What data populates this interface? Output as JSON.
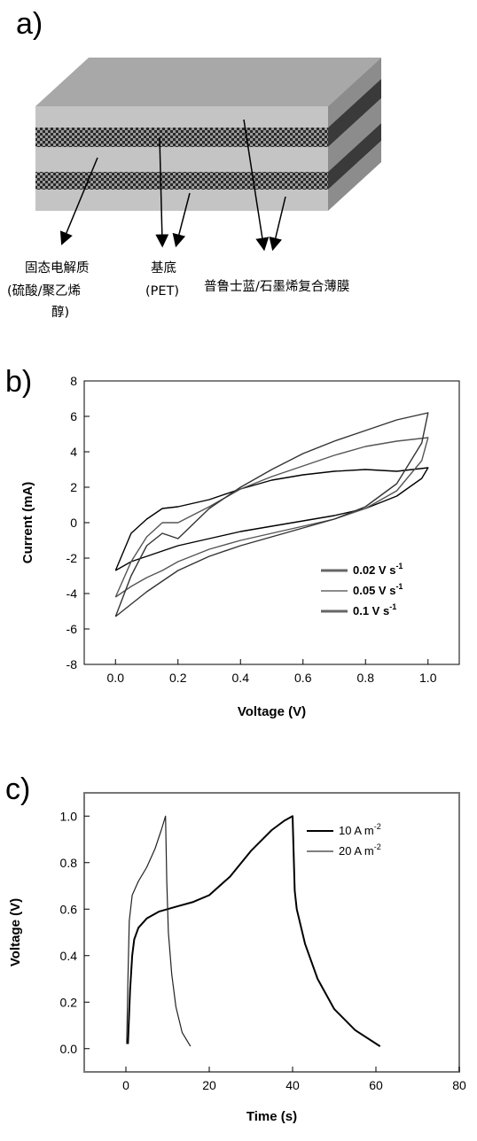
{
  "panels": {
    "a": {
      "label": "a)"
    },
    "b": {
      "label": "b)"
    },
    "c": {
      "label": "c)"
    }
  },
  "diagram": {
    "labels": {
      "electrolyte_line1": "固态电解质",
      "electrolyte_line2": "(硫酸/聚乙烯",
      "electrolyte_line3": "醇)",
      "substrate_line1": "基底",
      "substrate_line2": "(PET)",
      "film": "普鲁士蓝/石墨烯复合薄膜"
    },
    "colors": {
      "layer_face": "#c0c0c0",
      "layer_top": "#a8a8a8",
      "layer_side": "#8a8a8a",
      "electrolyte": "#2a2a2a"
    }
  },
  "chart_data": [
    {
      "type": "line",
      "ylabel": "Current (mA)",
      "xlabel": "Voltage (V)",
      "xlim": [
        -0.1,
        1.1
      ],
      "ylim": [
        -8,
        8
      ],
      "xticks": [
        "0.0",
        "0.2",
        "0.4",
        "0.6",
        "0.8",
        "1.0"
      ],
      "yticks": [
        "-8",
        "-6",
        "-4",
        "-2",
        "0",
        "2",
        "4",
        "6",
        "8"
      ],
      "legend_position": "bottom-right",
      "series": [
        {
          "name": "0.02 V s",
          "name_sup": "-1",
          "x": [
            0.0,
            0.05,
            0.1,
            0.15,
            0.2,
            0.3,
            0.4,
            0.5,
            0.6,
            0.7,
            0.8,
            0.9,
            1.0,
            0.98,
            0.9,
            0.8,
            0.7,
            0.6,
            0.5,
            0.4,
            0.3,
            0.2,
            0.15,
            0.1,
            0.05,
            0.0
          ],
          "y": [
            -2.7,
            -0.6,
            0.2,
            0.8,
            0.9,
            1.3,
            1.9,
            2.4,
            2.7,
            2.9,
            3.0,
            2.9,
            3.1,
            2.5,
            1.5,
            0.8,
            0.4,
            0.1,
            -0.2,
            -0.5,
            -0.9,
            -1.3,
            -1.6,
            -1.9,
            -2.2,
            -2.7
          ]
        },
        {
          "name": "0.05 V s",
          "name_sup": "-1",
          "x": [
            0.0,
            0.05,
            0.1,
            0.15,
            0.2,
            0.3,
            0.4,
            0.5,
            0.6,
            0.7,
            0.8,
            0.9,
            1.0,
            0.98,
            0.9,
            0.8,
            0.7,
            0.6,
            0.5,
            0.4,
            0.3,
            0.2,
            0.15,
            0.1,
            0.05,
            0.0
          ],
          "y": [
            -4.2,
            -2.2,
            -0.8,
            0.0,
            0.0,
            0.9,
            1.9,
            2.6,
            3.2,
            3.8,
            4.3,
            4.6,
            4.8,
            3.5,
            1.8,
            0.8,
            0.2,
            -0.2,
            -0.6,
            -1.0,
            -1.5,
            -2.2,
            -2.7,
            -3.1,
            -3.6,
            -4.2
          ]
        },
        {
          "name": "0.1 V s",
          "name_sup": "-1",
          "x": [
            0.0,
            0.05,
            0.1,
            0.15,
            0.2,
            0.3,
            0.4,
            0.5,
            0.6,
            0.7,
            0.8,
            0.9,
            1.0,
            0.98,
            0.9,
            0.8,
            0.7,
            0.6,
            0.5,
            0.4,
            0.3,
            0.2,
            0.15,
            0.1,
            0.05,
            0.0
          ],
          "y": [
            -5.3,
            -3.0,
            -1.3,
            -0.6,
            -0.9,
            0.8,
            2.0,
            3.0,
            3.9,
            4.6,
            5.2,
            5.8,
            6.2,
            4.5,
            2.2,
            0.9,
            0.2,
            -0.3,
            -0.8,
            -1.3,
            -1.9,
            -2.7,
            -3.3,
            -3.9,
            -4.6,
            -5.3
          ]
        }
      ]
    },
    {
      "type": "line",
      "ylabel": "Voltage (V)",
      "xlabel": "Time (s)",
      "xlim": [
        -10,
        80
      ],
      "ylim": [
        -0.1,
        1.1
      ],
      "xticks": [
        "0",
        "20",
        "40",
        "60",
        "80"
      ],
      "yticks": [
        "0.0",
        "0.2",
        "0.4",
        "0.6",
        "0.8",
        "1.0"
      ],
      "legend_position": "top-right",
      "series": [
        {
          "name": "10 A m",
          "name_sup": "-2",
          "x": [
            0.5,
            1,
            1.5,
            2,
            3,
            5,
            8,
            12,
            16,
            20,
            25,
            30,
            35,
            38,
            40,
            40.5,
            41,
            43,
            46,
            50,
            55,
            61
          ],
          "y": [
            0.02,
            0.25,
            0.4,
            0.47,
            0.52,
            0.56,
            0.59,
            0.61,
            0.63,
            0.66,
            0.74,
            0.85,
            0.94,
            0.98,
            1.0,
            0.68,
            0.6,
            0.45,
            0.3,
            0.17,
            0.08,
            0.01
          ],
          "stroke": 2.0
        },
        {
          "name": "20 A m",
          "name_sup": "-2",
          "x": [
            0.2,
            0.5,
            0.8,
            1.5,
            3,
            5,
            7,
            8.5,
            9.5,
            9.8,
            10.2,
            11,
            12,
            13.5,
            15.5
          ],
          "y": [
            0.02,
            0.3,
            0.55,
            0.66,
            0.72,
            0.78,
            0.86,
            0.94,
            1.0,
            0.72,
            0.5,
            0.32,
            0.18,
            0.07,
            0.01
          ],
          "stroke": 1.2
        }
      ]
    }
  ]
}
